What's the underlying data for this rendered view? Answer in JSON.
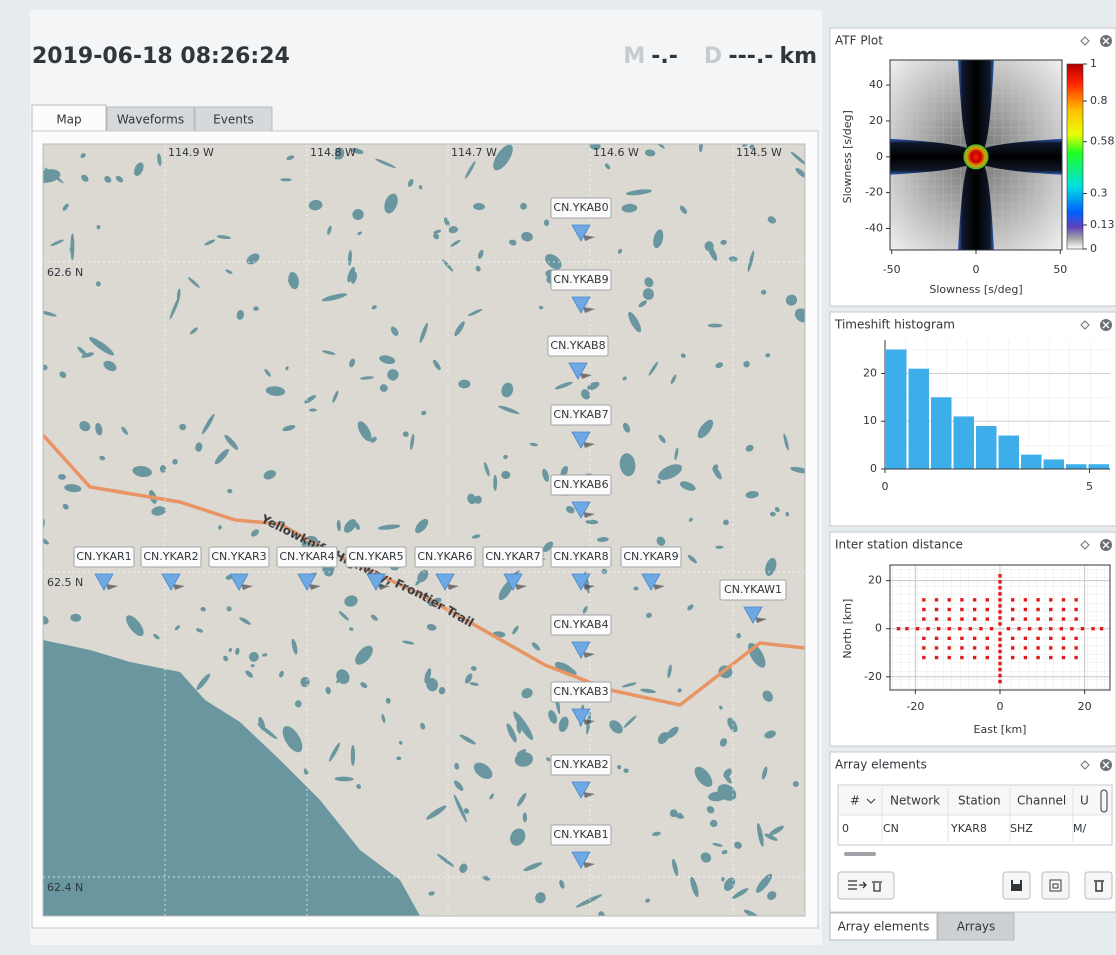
{
  "header": {
    "datetime": "2019-06-18 08:26:24",
    "magnitude_label": "M",
    "magnitude": "-.-",
    "distance_label": "D",
    "distance": "---.-",
    "distance_unit": "km"
  },
  "tabs": [
    "Map",
    "Waveforms",
    "Events"
  ],
  "map": {
    "longitude_labels": [
      "114.9 W",
      "114.8 W",
      "114.7 W",
      "114.6 W",
      "114.5 W"
    ],
    "latitude_labels": [
      "62.6 N",
      "62.5 N",
      "62.4 N"
    ],
    "road_label": "Yellowknife Highway; Frontier Trail",
    "stations": [
      "CN.YKAB0",
      "CN.YKAB9",
      "CN.YKAB8",
      "CN.YKAB7",
      "CN.YKAB6",
      "CN.YKAR1",
      "CN.YKAR2",
      "CN.YKAR3",
      "CN.YKAR4",
      "CN.YKAR5",
      "CN.YKAR6",
      "CN.YKAR7",
      "CN.YKAR8",
      "CN.YKAR9",
      "CN.YKAW1",
      "CN.YKAB4",
      "CN.YKAB3",
      "CN.YKAB2",
      "CN.YKAB1"
    ]
  },
  "panels": {
    "atf": {
      "title": "ATF Plot",
      "type": "heatmap",
      "xlabel": "Slowness [s/deg]",
      "ylabel": "Slowness [s/deg]",
      "xlim": [
        -51,
        51
      ],
      "ylim": [
        -52,
        54
      ],
      "xticks": [
        -50,
        0,
        50
      ],
      "yticks": [
        -40,
        -20,
        0,
        20,
        40
      ],
      "colorbar_ticks": [
        0,
        0.13,
        0.3,
        0.58,
        0.8,
        1
      ]
    },
    "histogram": {
      "title": "Timeshift histogram",
      "type": "histogram",
      "color": "#3daee9",
      "bins": [
        0,
        0.55,
        1.1,
        1.65,
        2.2,
        2.75,
        3.3,
        3.85,
        4.4,
        4.95,
        5.5
      ],
      "values": [
        25,
        21,
        15,
        11,
        9,
        7,
        3,
        2,
        1,
        1
      ],
      "xlim": [
        0,
        5.5
      ],
      "ylim": [
        0,
        27
      ],
      "xticks": [
        0,
        5
      ],
      "yticks": [
        0,
        10,
        20
      ]
    },
    "distance": {
      "title": "Inter station distance",
      "type": "scatter",
      "color": "#e01b1b",
      "xlabel": "East [km]",
      "ylabel": "North [km]",
      "xlim": [
        -26,
        26
      ],
      "ylim": [
        -25.5,
        26.5
      ],
      "xticks": [
        -20,
        0,
        20
      ],
      "yticks": [
        -20,
        0,
        20
      ],
      "x": [
        -24,
        -22,
        -19.5,
        -17,
        -14.5,
        -12,
        -9.5,
        -7,
        -4.5,
        -2,
        2,
        4.5,
        7,
        9.5,
        12,
        14.5,
        17,
        19.5,
        22,
        24,
        0,
        0,
        0,
        0,
        0,
        0,
        0,
        0,
        0,
        0,
        0,
        0,
        0,
        0,
        0,
        0,
        0,
        0,
        -18,
        -18,
        -18,
        -18,
        -18,
        -18,
        -15,
        -15,
        -15,
        -15,
        -15,
        -15,
        -12,
        -12,
        -12,
        -12,
        -12,
        -12,
        -9,
        -9,
        -9,
        -9,
        -9,
        -9,
        -6,
        -6,
        -6,
        -6,
        -6,
        -6,
        -3,
        -3,
        -3,
        -3,
        -3,
        -3,
        3,
        3,
        3,
        3,
        3,
        3,
        6,
        6,
        6,
        6,
        6,
        6,
        9,
        9,
        9,
        9,
        9,
        9,
        12,
        12,
        12,
        12,
        12,
        12,
        15,
        15,
        15,
        15,
        15,
        15,
        18,
        18,
        18,
        18,
        18,
        18
      ],
      "y": [
        0,
        0,
        0,
        0,
        0,
        0,
        0,
        0,
        0,
        0,
        0,
        0,
        0,
        0,
        0,
        0,
        0,
        0,
        0,
        0,
        -22,
        -19.5,
        -17,
        -14.5,
        -12,
        -9.5,
        -7,
        -4.5,
        -2,
        2,
        4.5,
        7,
        9.5,
        12,
        14.5,
        17,
        19.5,
        22,
        -12,
        -8,
        -4,
        4,
        8,
        12,
        -12,
        -8,
        -4,
        4,
        8,
        12,
        -12,
        -8,
        -4,
        4,
        8,
        12,
        -12,
        -8,
        -4,
        4,
        8,
        12,
        -12,
        -8,
        -4,
        4,
        8,
        12,
        -12,
        -8,
        -4,
        4,
        8,
        12,
        -12,
        -8,
        -4,
        4,
        8,
        12,
        -12,
        -8,
        -4,
        4,
        8,
        12,
        -12,
        -8,
        -4,
        4,
        8,
        12,
        -12,
        -8,
        -4,
        4,
        8,
        12,
        -12,
        -8,
        -4,
        4,
        8,
        12,
        -12,
        -8,
        -4,
        4,
        8,
        12
      ]
    },
    "array_elements": {
      "title": "Array elements",
      "columns": [
        "#",
        "Network",
        "Station",
        "Channel",
        "U"
      ],
      "rows": [
        [
          "0",
          "CN",
          "YKAR8",
          "SHZ",
          "M/"
        ]
      ]
    }
  },
  "bottom_tabs": [
    "Array elements",
    "Arrays"
  ]
}
